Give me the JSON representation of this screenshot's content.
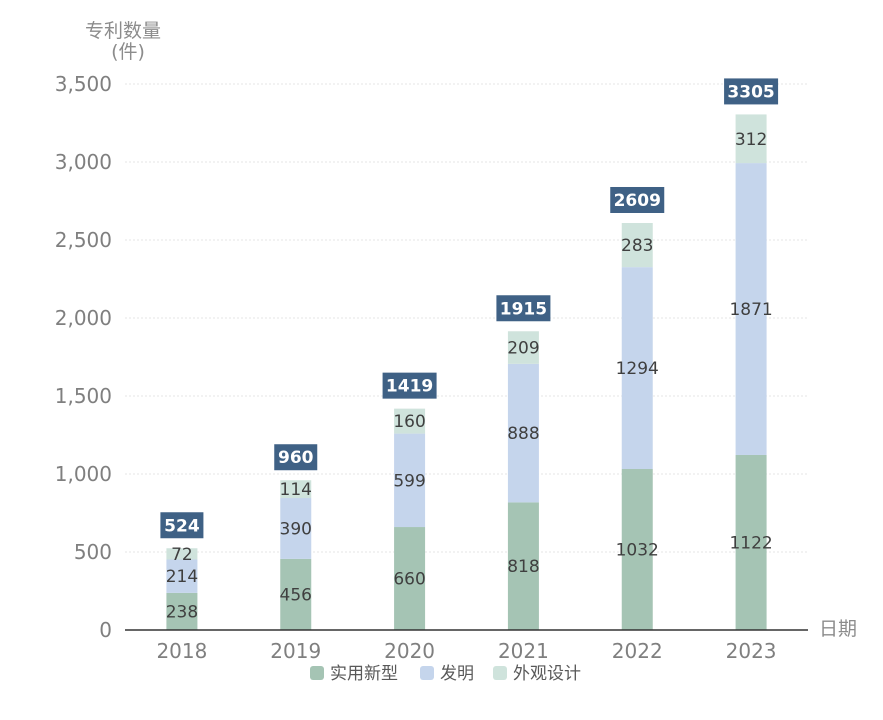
{
  "chart_data": {
    "type": "bar",
    "stacked": true,
    "categories": [
      "2018",
      "2019",
      "2020",
      "2021",
      "2022",
      "2023"
    ],
    "series": [
      {
        "name": "实用新型",
        "values": [
          238,
          456,
          660,
          818,
          1032,
          1122
        ]
      },
      {
        "name": "发明",
        "values": [
          214,
          390,
          599,
          888,
          1294,
          1871
        ]
      },
      {
        "name": "外观设计",
        "values": [
          72,
          114,
          160,
          209,
          283,
          312
        ]
      }
    ],
    "totals": [
      524,
      960,
      1419,
      1915,
      2609,
      3305
    ],
    "ylabel_line1": "专利数量",
    "ylabel_line2": "(件)",
    "xlabel": "日期",
    "ylim": [
      0,
      3500
    ],
    "yticks": [
      0,
      500,
      1000,
      1500,
      2000,
      2500,
      3000,
      3500
    ],
    "ytick_labels": [
      "0",
      "500",
      "1,000",
      "1,500",
      "2,000",
      "2,500",
      "3,000",
      "3,500"
    ],
    "grid": true,
    "legend_position": "bottom",
    "colors": {
      "series": [
        "#a5c4b4",
        "#c5d5ec",
        "#cfe3dc"
      ],
      "total_box": "#3f6185",
      "axis": "#333333",
      "grid": "#e6e6e6"
    }
  }
}
